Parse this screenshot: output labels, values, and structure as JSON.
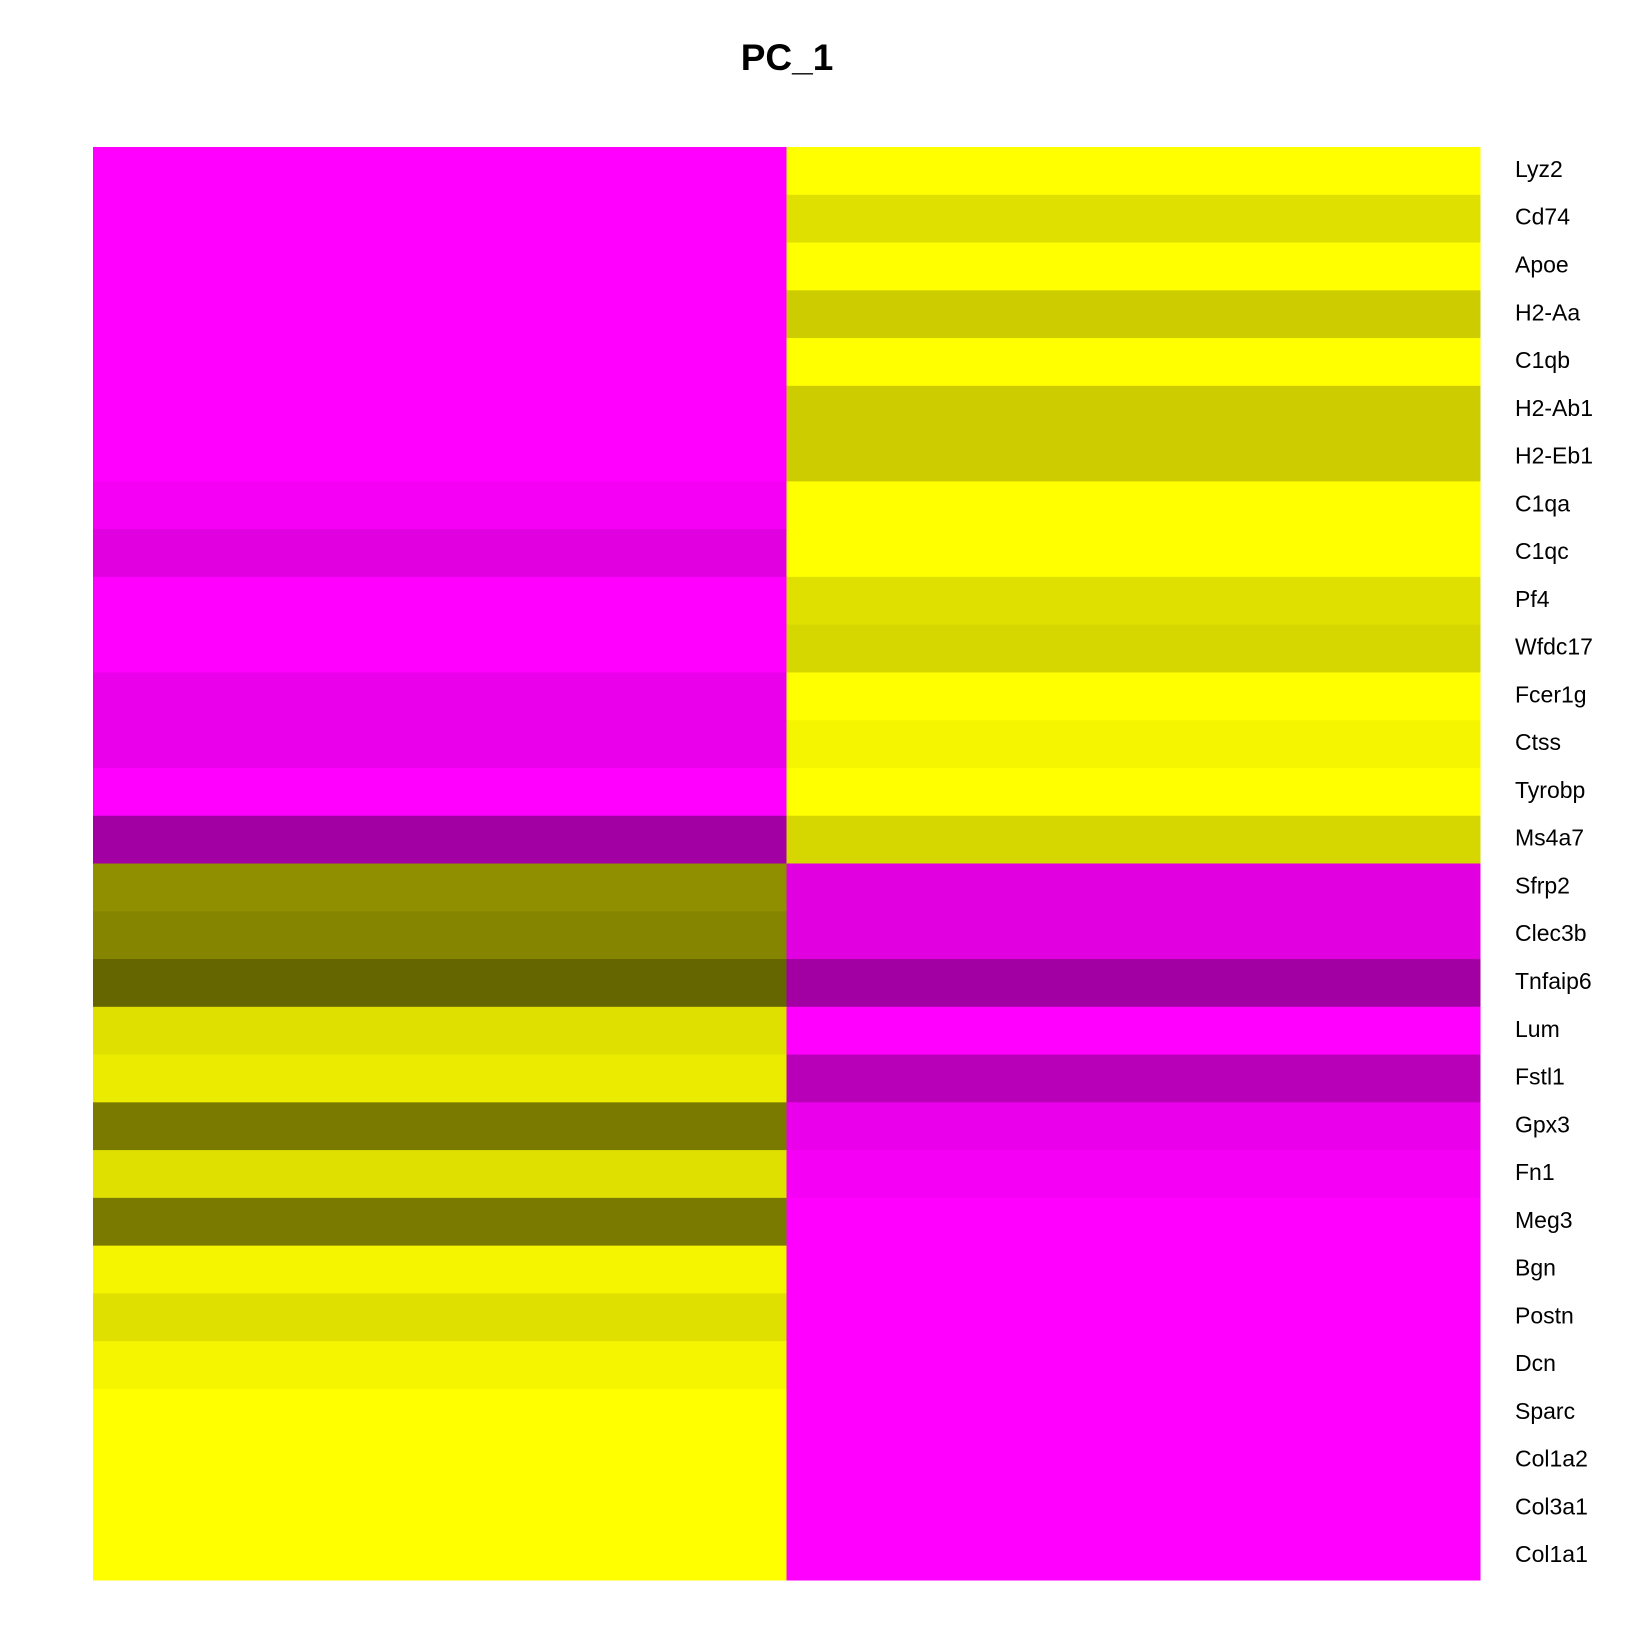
{
  "chart_data": {
    "type": "heatmap",
    "title": "PC_1",
    "rows": [
      "Lyz2",
      "Cd74",
      "Apoe",
      "H2-Aa",
      "C1qb",
      "H2-Ab1",
      "H2-Eb1",
      "C1qa",
      "C1qc",
      "Pf4",
      "Wfdc17",
      "Fcer1g",
      "Ctss",
      "Tyrobp",
      "Ms4a7",
      "Sfrp2",
      "Clec3b",
      "Tnfaip6",
      "Lum",
      "Fstl1",
      "Gpx3",
      "Fn1",
      "Meg3",
      "Bgn",
      "Postn",
      "Dcn",
      "Sparc",
      "Col1a2",
      "Col3a1",
      "Col1a1"
    ],
    "values": [
      [
        -2.5,
        2.5
      ],
      [
        -2.5,
        2.2
      ],
      [
        -2.5,
        2.5
      ],
      [
        -2.5,
        2.0
      ],
      [
        -2.5,
        2.5
      ],
      [
        -2.5,
        2.0
      ],
      [
        -2.5,
        2.0
      ],
      [
        -2.4,
        2.5
      ],
      [
        -2.2,
        2.5
      ],
      [
        -2.5,
        2.2
      ],
      [
        -2.5,
        2.1
      ],
      [
        -2.3,
        2.5
      ],
      [
        -2.3,
        2.4
      ],
      [
        -2.5,
        2.5
      ],
      [
        -1.6,
        2.1
      ],
      [
        1.4,
        -2.2
      ],
      [
        1.3,
        -2.2
      ],
      [
        1.0,
        -1.6
      ],
      [
        2.2,
        -2.5
      ],
      [
        2.3,
        -1.8
      ],
      [
        1.2,
        -2.3
      ],
      [
        2.2,
        -2.4
      ],
      [
        1.2,
        -2.5
      ],
      [
        2.4,
        -2.5
      ],
      [
        2.2,
        -2.5
      ],
      [
        2.4,
        -2.5
      ],
      [
        2.5,
        -2.5
      ],
      [
        2.5,
        -2.5
      ],
      [
        2.5,
        -2.5
      ],
      [
        2.5,
        -2.5
      ]
    ],
    "zlim": [
      -2.5,
      2.5
    ],
    "colorscale": [
      "#ff00ff",
      "#000000",
      "#ffff00"
    ]
  }
}
